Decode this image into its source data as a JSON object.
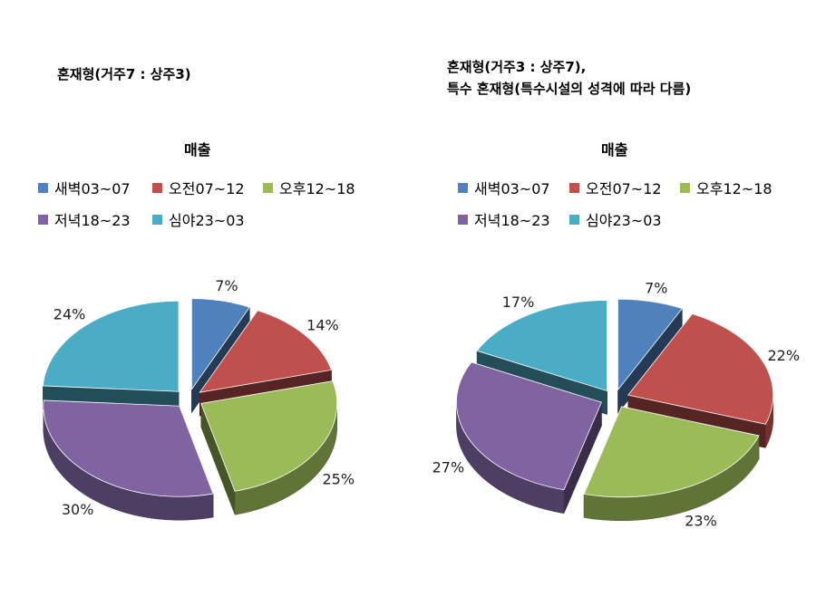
{
  "chart_data": [
    {
      "type": "pie",
      "heading": "혼재형(거주7 : 상주3)",
      "title": "매출",
      "legend_position": "top",
      "categories": [
        "새벽03~07",
        "오전07~12",
        "오후12~18",
        "저녁18~23",
        "심야23~03"
      ],
      "values": [
        7,
        14,
        25,
        30,
        24
      ],
      "value_labels": [
        "7%",
        "14%",
        "25%",
        "30%",
        "24%"
      ],
      "colors": [
        "#4F81BD",
        "#C0504D",
        "#9BBB59",
        "#8064A2",
        "#4BACC6"
      ],
      "exploded": true,
      "three_d": true
    },
    {
      "type": "pie",
      "heading": [
        "혼재형(거주3 : 상주7),",
        "특수 혼재형(특수시설의 성격에 따라 다름)"
      ],
      "title": "매출",
      "legend_position": "top",
      "categories": [
        "새벽03~07",
        "오전07~12",
        "오후12~18",
        "저녁18~23",
        "심야23~03"
      ],
      "values": [
        7,
        22,
        23,
        27,
        17
      ],
      "value_labels": [
        "7%",
        "22%",
        "23%",
        "27%",
        "17%"
      ],
      "colors": [
        "#4F81BD",
        "#C0504D",
        "#9BBB59",
        "#8064A2",
        "#4BACC6"
      ],
      "exploded": true,
      "three_d": true
    }
  ]
}
